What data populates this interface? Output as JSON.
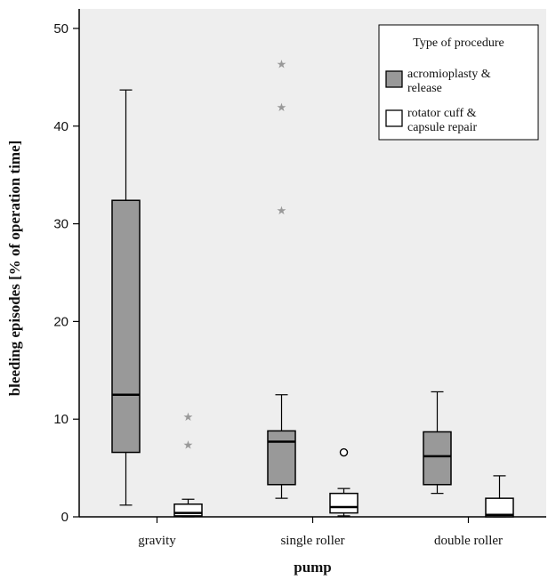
{
  "chart_data": {
    "type": "boxplot",
    "xlabel": "pump",
    "ylabel": "bleeding episodes [% of operation time]",
    "ylim": [
      0,
      52
    ],
    "yticks": [
      0,
      10,
      20,
      30,
      40,
      50
    ],
    "ytick_labels": [
      "0",
      "10",
      "20",
      "30",
      "40",
      "50"
    ],
    "categories": [
      "gravity",
      "single roller",
      "double roller"
    ],
    "grid": false,
    "legend": {
      "title": "Type of procedure",
      "placement": "top-right",
      "entries": [
        {
          "label_lines": [
            "acromioplasty &",
            "release"
          ],
          "color": "#999999"
        },
        {
          "label_lines": [
            "rotator cuff &",
            "capsule repair"
          ],
          "color": "#ffffff"
        }
      ]
    },
    "series": [
      {
        "label": "acromioplasty & release",
        "color": "#999999",
        "boxes": [
          {
            "category": "gravity",
            "whisker_low": 1.2,
            "q1": 6.6,
            "median": 12.5,
            "q3": 32.4,
            "whisker_high": 43.7,
            "outliers": [],
            "extremes": []
          },
          {
            "category": "single roller",
            "whisker_low": 1.9,
            "q1": 3.3,
            "median": 7.7,
            "q3": 8.8,
            "whisker_high": 12.5,
            "outliers": [],
            "extremes": [
              31.4,
              42.0,
              46.4
            ]
          },
          {
            "category": "double roller",
            "whisker_low": 2.4,
            "q1": 3.3,
            "median": 6.2,
            "q3": 8.7,
            "whisker_high": 12.8,
            "outliers": [],
            "extremes": []
          }
        ]
      },
      {
        "label": "rotator cuff & capsule repair",
        "color": "#ffffff",
        "boxes": [
          {
            "category": "gravity",
            "whisker_low": 0.0,
            "q1": 0.1,
            "median": 0.4,
            "q3": 1.3,
            "whisker_high": 1.8,
            "outliers": [],
            "extremes": [
              7.4,
              10.3
            ]
          },
          {
            "category": "single roller",
            "whisker_low": 0.1,
            "q1": 0.4,
            "median": 1.0,
            "q3": 2.4,
            "whisker_high": 2.9,
            "outliers": [
              6.6
            ],
            "extremes": []
          },
          {
            "category": "double roller",
            "whisker_low": 0.0,
            "q1": 0.0,
            "median": 0.2,
            "q3": 1.9,
            "whisker_high": 4.2,
            "outliers": [],
            "extremes": []
          }
        ]
      }
    ],
    "colors": {
      "plot_background": "#eeeeee",
      "axis": "#000000",
      "extreme_marker": "#999999"
    }
  }
}
